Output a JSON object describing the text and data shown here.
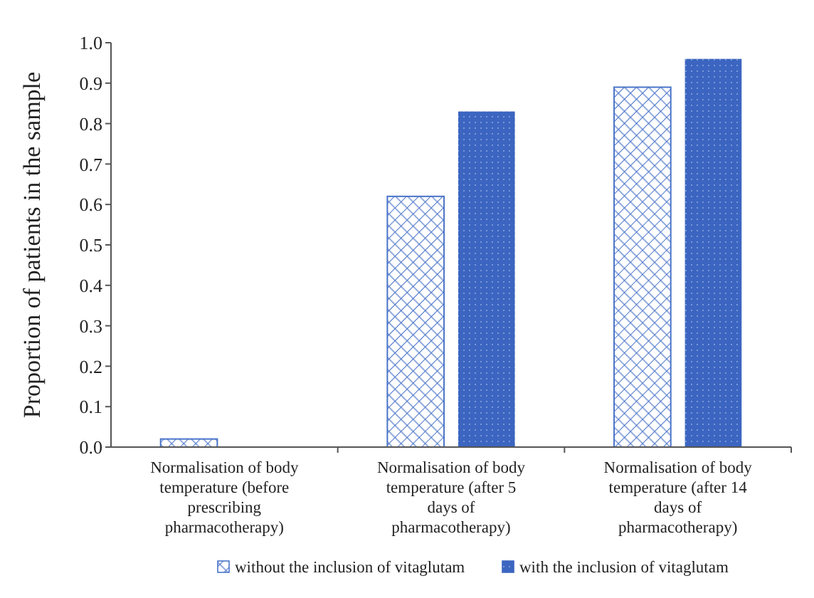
{
  "chart_data": {
    "type": "bar",
    "ylabel": "Proportion of patients in the sample",
    "categories": [
      "Normalisation of body temperature (before prescribing pharmacotherapy)",
      "Normalisation of body temperature (after 5 days of pharmacotherapy)",
      "Normalisation of body temperature (after 14 days of pharmacotherapy)"
    ],
    "series": [
      {
        "name": "without the inclusion of vitaglutam",
        "color": "#4a74c9",
        "values": [
          0.02,
          0.62,
          0.89
        ]
      },
      {
        "name": "with the inclusion of vitaglutam",
        "color": "#3b65c0",
        "values": [
          0,
          0.83,
          0.96
        ]
      }
    ],
    "ylim": [
      0,
      1
    ],
    "yticks": [
      {
        "value": 0,
        "label": "0.0"
      },
      {
        "value": 0.1,
        "label": "0.1"
      },
      {
        "value": 0.2,
        "label": "0.2"
      },
      {
        "value": 0.3,
        "label": "0.3"
      },
      {
        "value": 0.4,
        "label": "0.4"
      },
      {
        "value": 0.5,
        "label": "0.5"
      },
      {
        "value": 0.6,
        "label": "0.6"
      },
      {
        "value": 0.7,
        "label": "0.7"
      },
      {
        "value": 0.8,
        "label": "0.8"
      },
      {
        "value": 0.9,
        "label": "0.9"
      },
      {
        "value": 1,
        "label": "1.0"
      }
    ],
    "grid": false,
    "legend": "bottom"
  }
}
